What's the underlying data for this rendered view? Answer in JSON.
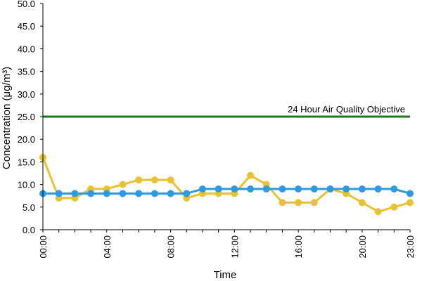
{
  "chart_data": {
    "type": "line",
    "xlabel": "Time",
    "ylabel": "Concentration (μg/m³)",
    "ylim": [
      0,
      50
    ],
    "yticks": [
      "0.0",
      "5.0",
      "10.0",
      "15.0",
      "20.0",
      "25.0",
      "30.0",
      "35.0",
      "40.0",
      "45.0",
      "50.0"
    ],
    "x": [
      "00:00",
      "01:00",
      "02:00",
      "03:00",
      "04:00",
      "05:00",
      "06:00",
      "07:00",
      "08:00",
      "09:00",
      "10:00",
      "11:00",
      "12:00",
      "13:00",
      "14:00",
      "15:00",
      "16:00",
      "17:00",
      "18:00",
      "19:00",
      "20:00",
      "21:00",
      "22:00",
      "23:00"
    ],
    "xtick_labels": [
      "00:00",
      "04:00",
      "08:00",
      "12:00",
      "16:00",
      "20:00",
      "23:00"
    ],
    "grid": false,
    "series": [
      {
        "color": "#e8c232",
        "values": [
          16,
          7,
          7,
          9,
          9,
          10,
          11,
          11,
          11,
          7,
          8,
          8,
          8,
          12,
          10,
          6,
          6,
          6,
          9,
          8,
          6,
          4,
          5,
          6
        ]
      },
      {
        "color": "#2e9ae0",
        "values": [
          8,
          8,
          8,
          8,
          8,
          8,
          8,
          8,
          8,
          8,
          9,
          9,
          9,
          9,
          9,
          9,
          9,
          9,
          9,
          9,
          9,
          9,
          9,
          8
        ]
      }
    ],
    "reference_line": {
      "value": 25,
      "label": "24 Hour Air Quality Objective",
      "color": "#1c7a1c"
    }
  }
}
